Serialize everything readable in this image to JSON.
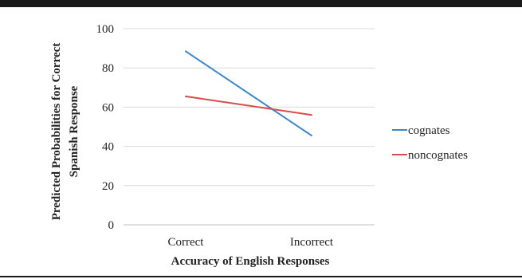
{
  "chart_data": {
    "type": "line",
    "categories": [
      "Correct",
      "Incorrect"
    ],
    "series": [
      {
        "name": "cognates",
        "values": [
          88.5,
          45.5
        ],
        "color": "#3d86c6"
      },
      {
        "name": "noncognates",
        "values": [
          65.5,
          56
        ],
        "color": "#d94a4a"
      }
    ],
    "xlabel": "Accuracy of English Responses",
    "ylabel_lines": [
      "Predicted Probabilities for Correct",
      "Spanish Response"
    ],
    "ylim": [
      0,
      100
    ],
    "yticks": [
      0,
      20,
      40,
      60,
      80,
      100
    ],
    "grid": true,
    "legend_position": "right",
    "colors": {
      "top_rule": "#1a1a1a",
      "bottom_rule": "#1a1a1a",
      "grid": "#d9d9d9",
      "axis": "#bfbfbf"
    }
  }
}
